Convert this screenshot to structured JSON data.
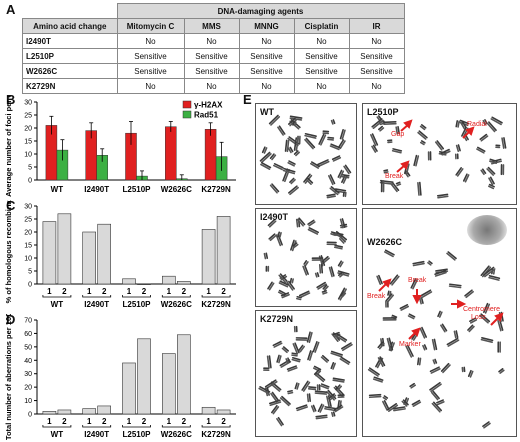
{
  "panels": {
    "A": "A",
    "B": "B",
    "C": "C",
    "D": "D",
    "E": "E"
  },
  "table": {
    "group_header": "DNA-damaging agents",
    "columns": [
      "Amino acid change",
      "Mitomycin C",
      "MMS",
      "MNNG",
      "Cisplatin",
      "IR"
    ],
    "rows": [
      [
        "I2490T",
        "No",
        "No",
        "No",
        "No",
        "No"
      ],
      [
        "L2510P",
        "Sensitive",
        "Sensitive",
        "Sensitive",
        "Sensitive",
        "Sensitive"
      ],
      [
        "W2626C",
        "Sensitive",
        "Sensitive",
        "Sensitive",
        "Sensitive",
        "Sensitive"
      ],
      [
        "K2729N",
        "No",
        "No",
        "No",
        "No",
        "No"
      ]
    ]
  },
  "chart_data": [
    {
      "type": "bar",
      "panel": "B",
      "categories": [
        "WT",
        "I2490T",
        "L2510P",
        "W2626C",
        "K2729N"
      ],
      "series": [
        {
          "name": "γ-H2AX",
          "values": [
            21,
            19,
            18,
            20.5,
            19.5
          ],
          "errors": [
            3.5,
            3,
            4.5,
            2,
            2.5
          ],
          "color": "#e02020"
        },
        {
          "name": "Rad51",
          "values": [
            11.5,
            9.5,
            1.5,
            0.5,
            9
          ],
          "errors": [
            4,
            2.5,
            2,
            1.5,
            5.5
          ],
          "color": "#3cb043"
        }
      ],
      "ylabel": "Average number of foci per cell",
      "ylim": [
        0,
        30
      ],
      "yticks": [
        0,
        5,
        10,
        15,
        20,
        25,
        30
      ],
      "legend": "top-right"
    },
    {
      "type": "bar",
      "panel": "C",
      "categories": [
        "WT",
        "I2490T",
        "L2510P",
        "W2626C",
        "K2729N"
      ],
      "sub_categories": [
        "1",
        "2"
      ],
      "values": [
        [
          24,
          27
        ],
        [
          20,
          23
        ],
        [
          2,
          0
        ],
        [
          3,
          1
        ],
        [
          21,
          26
        ]
      ],
      "ylabel": "% of homologous recombination",
      "ylim": [
        0,
        30
      ],
      "yticks": [
        0,
        5,
        10,
        15,
        20,
        25,
        30
      ],
      "color": "#d9d9d9"
    },
    {
      "type": "bar",
      "panel": "D",
      "categories": [
        "WT",
        "I2490T",
        "L2510P",
        "W2626C",
        "K2729N"
      ],
      "sub_categories": [
        "1",
        "2"
      ],
      "values": [
        [
          2,
          3
        ],
        [
          4,
          6
        ],
        [
          38,
          56
        ],
        [
          45,
          59
        ],
        [
          5,
          3
        ]
      ],
      "ylabel": "Total number of aberrations per 100 cells",
      "ylim": [
        0,
        70
      ],
      "yticks": [
        0,
        10,
        20,
        30,
        40,
        50,
        60,
        70
      ],
      "color": "#d9d9d9"
    }
  ],
  "micrographs": {
    "labels": [
      "WT",
      "L2510P",
      "I2490T",
      "W2626C",
      "K2729N"
    ],
    "annotations_L2510P": [
      "Gap",
      "Radial",
      "Break"
    ],
    "annotations_W2626C": [
      "Break",
      "Break",
      "Centromere",
      "Loss",
      "Marker"
    ]
  }
}
